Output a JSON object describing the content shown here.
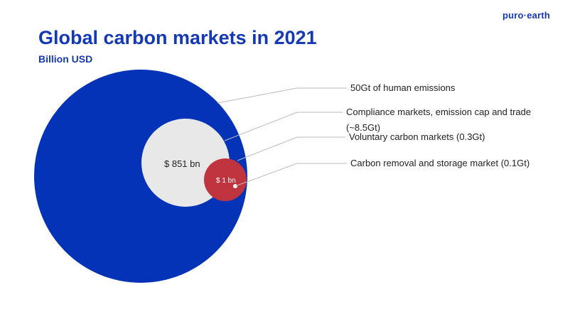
{
  "brand": {
    "logo_text": "puro·earth"
  },
  "chart_data": {
    "type": "bubble",
    "title": "Global carbon markets in 2021",
    "subtitle": "Billion USD",
    "series": [
      {
        "name": "50Gt of human emissions",
        "value_label": "",
        "color": "#0433b8"
      },
      {
        "name": "Compliance markets, emission cap and trade",
        "name_line2": "(~8.5Gt)",
        "value_label": "$ 851 bn",
        "value": 851,
        "color": "#e8e8e8"
      },
      {
        "name": "Voluntary carbon markets (0.3Gt)",
        "value_label": "$ 1 bn",
        "value": 1,
        "color": "#c0343f"
      },
      {
        "name": "Carbon removal and storage market (0.1Gt)",
        "value_label": "",
        "color": "#ffffff"
      }
    ]
  }
}
